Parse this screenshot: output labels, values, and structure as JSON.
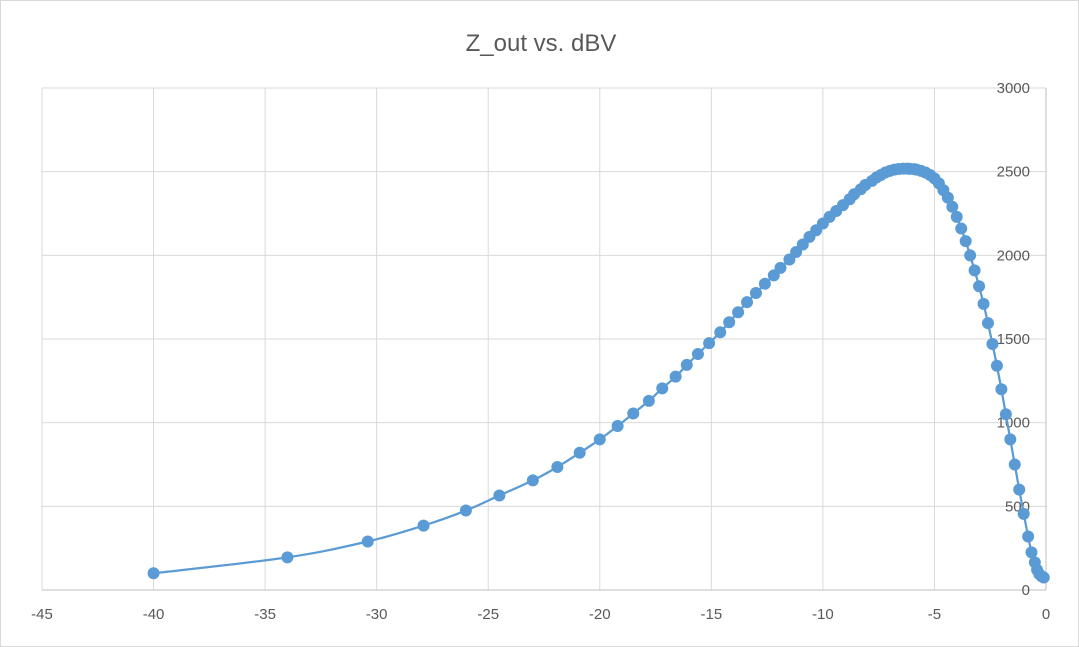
{
  "chart_data": {
    "type": "scatter",
    "title": "Z_out vs. dBV",
    "xlabel": "",
    "ylabel": "",
    "xlim": [
      -45,
      0
    ],
    "ylim": [
      0,
      3000
    ],
    "x_ticks": [
      "-45",
      "-40",
      "-35",
      "-30",
      "-25",
      "-20",
      "-15",
      "-10",
      "-5",
      "0"
    ],
    "y_ticks": [
      "0",
      "500",
      "1000",
      "1500",
      "2000",
      "2500",
      "3000"
    ],
    "grid": true,
    "legend": "none",
    "line_style": "smoothed line with markers",
    "color": "#5b9bd5",
    "series": [
      {
        "x": [
          -40,
          -34,
          -30.4,
          -27.9,
          -26,
          -24.5,
          -23,
          -21.9,
          -20.9,
          -20,
          -19.2,
          -18.5,
          -17.8,
          -17.2,
          -16.6,
          -16.1,
          -15.6,
          -15.1,
          -14.6,
          -14.2,
          -13.8,
          -13.4,
          -13,
          -12.6,
          -12.2,
          -11.9,
          -11.5,
          -11.2,
          -10.9,
          -10.6,
          -10.3,
          -10,
          -9.7,
          -9.4,
          -9.1,
          -8.8,
          -8.6,
          -8.3,
          -8.1,
          -7.8,
          -7.6,
          -7.4,
          -7.2,
          -7,
          -6.8,
          -6.6,
          -6.4,
          -6.2,
          -6.1,
          -5.9,
          -5.8,
          -5.6,
          -5.4,
          -5.2,
          -5,
          -4.8,
          -4.6,
          -4.4,
          -4.2,
          -4,
          -3.8,
          -3.6,
          -3.4,
          -3.2,
          -3,
          -2.8,
          -2.6,
          -2.4,
          -2.2,
          -2,
          -1.8,
          -1.6,
          -1.4,
          -1.2,
          -1.0,
          -0.8,
          -0.65,
          -0.5,
          -0.4,
          -0.3,
          -0.2,
          -0.1
        ],
        "y": [
          100,
          195,
          290,
          385,
          475,
          565,
          655,
          735,
          820,
          900,
          980,
          1055,
          1130,
          1205,
          1275,
          1345,
          1410,
          1475,
          1540,
          1600,
          1660,
          1720,
          1775,
          1830,
          1880,
          1925,
          1975,
          2020,
          2065,
          2110,
          2150,
          2190,
          2230,
          2265,
          2300,
          2335,
          2365,
          2395,
          2420,
          2445,
          2465,
          2480,
          2495,
          2505,
          2512,
          2516,
          2518,
          2518,
          2517,
          2515,
          2512,
          2505,
          2495,
          2480,
          2460,
          2430,
          2390,
          2345,
          2290,
          2230,
          2160,
          2085,
          2000,
          1910,
          1815,
          1710,
          1595,
          1470,
          1340,
          1200,
          1050,
          900,
          750,
          600,
          455,
          320,
          225,
          165,
          120,
          95,
          82,
          75
        ]
      }
    ]
  }
}
